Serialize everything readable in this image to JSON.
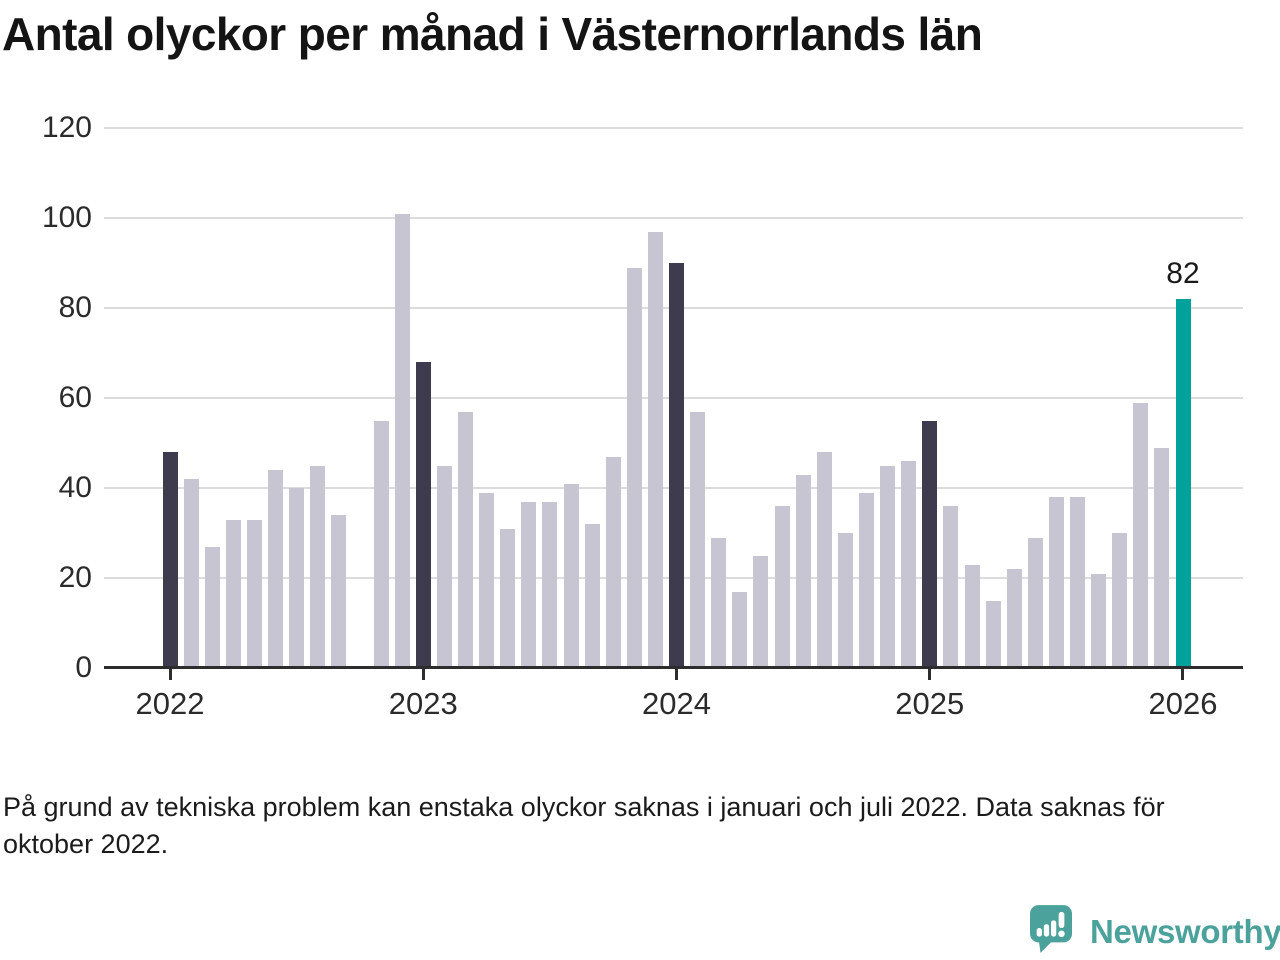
{
  "title": "Antal olyckor per månad i Västernorrlands län",
  "footnote": "På grund av tekniska problem kan enstaka olyckor saknas i januari och juli 2022. Data saknas för oktober 2022.",
  "logo": {
    "name": "Newsworthy",
    "icon": "speech-bubble-bar-chart-icon",
    "color": "#4ba19b"
  },
  "chart_data": {
    "type": "bar",
    "title": "Antal olyckor per månad i Västernorrlands län",
    "x_unit": "month",
    "x_start": "2022-01",
    "x_end": "2026-01",
    "year_tick_labels": [
      "2022",
      "2023",
      "2024",
      "2025",
      "2026"
    ],
    "y_ticks": [
      0,
      20,
      40,
      60,
      80,
      100,
      120
    ],
    "ylim": [
      0,
      120
    ],
    "grid": "horizontal",
    "values": [
      48,
      42,
      27,
      33,
      33,
      44,
      40,
      45,
      34,
      null,
      55,
      101,
      68,
      45,
      57,
      39,
      31,
      37,
      37,
      41,
      32,
      47,
      89,
      97,
      90,
      57,
      29,
      17,
      25,
      36,
      43,
      48,
      30,
      39,
      45,
      46,
      55,
      36,
      23,
      15,
      22,
      29,
      38,
      38,
      21,
      30,
      59,
      49,
      82
    ],
    "missing_months": [
      "2022-10"
    ],
    "last_value_label": "82",
    "colors": {
      "january_bar": "#3e3b4e",
      "default_bar": "#c7c5d1",
      "highlight_bar": "#00a29b",
      "gridline": "#dcdcde",
      "axis": "#2d2d2d"
    }
  }
}
